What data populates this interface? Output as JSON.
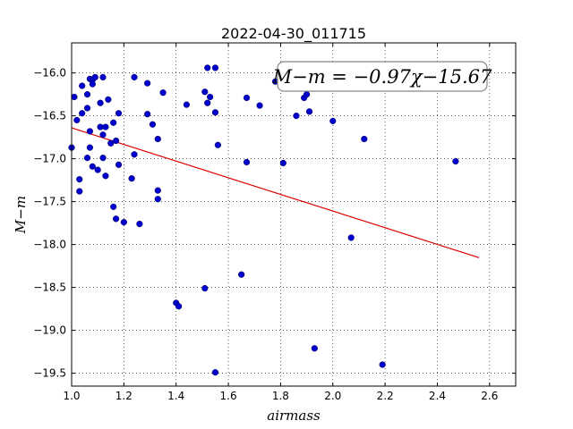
{
  "chart_data": {
    "type": "scatter",
    "title": "2022-04-30_011715",
    "xlabel": "airmass",
    "ylabel": "M−m",
    "xlim": [
      1.0,
      2.7
    ],
    "ylim": [
      -19.65,
      -15.65
    ],
    "xticks": [
      1.0,
      1.2,
      1.4,
      1.6,
      1.8,
      2.0,
      2.2,
      2.4,
      2.6
    ],
    "xtick_labels": [
      "1.0",
      "1.2",
      "1.4",
      "1.6",
      "1.8",
      "2.0",
      "2.2",
      "2.4",
      "2.6"
    ],
    "yticks": [
      -16.0,
      -16.5,
      -17.0,
      -17.5,
      -18.0,
      -18.5,
      -19.0,
      -19.5
    ],
    "ytick_labels": [
      "−16.0",
      "−16.5",
      "−17.0",
      "−17.5",
      "−18.0",
      "−18.5",
      "−19.0",
      "−19.5"
    ],
    "grid": true,
    "annotation": "M−m = −0.97χ−15.67",
    "points_color": "#0000cc",
    "fit_color": "#dd0000",
    "fit": {
      "slope": -0.97,
      "intercept": -15.67,
      "x_range": [
        1.0,
        2.56
      ]
    },
    "points": [
      [
        1.0,
        -16.87
      ],
      [
        1.01,
        -16.28
      ],
      [
        1.02,
        -16.55
      ],
      [
        1.03,
        -17.24
      ],
      [
        1.03,
        -17.38
      ],
      [
        1.04,
        -16.15
      ],
      [
        1.04,
        -16.47
      ],
      [
        1.06,
        -16.25
      ],
      [
        1.06,
        -16.41
      ],
      [
        1.06,
        -16.99
      ],
      [
        1.07,
        -16.07
      ],
      [
        1.07,
        -16.68
      ],
      [
        1.07,
        -16.87
      ],
      [
        1.08,
        -16.08
      ],
      [
        1.08,
        -16.13
      ],
      [
        1.08,
        -17.09
      ],
      [
        1.09,
        -16.05
      ],
      [
        1.1,
        -17.13
      ],
      [
        1.11,
        -16.35
      ],
      [
        1.11,
        -16.63
      ],
      [
        1.12,
        -16.05
      ],
      [
        1.12,
        -16.72
      ],
      [
        1.12,
        -16.99
      ],
      [
        1.13,
        -16.63
      ],
      [
        1.13,
        -17.2
      ],
      [
        1.14,
        -16.31
      ],
      [
        1.15,
        -16.82
      ],
      [
        1.16,
        -16.58
      ],
      [
        1.16,
        -17.56
      ],
      [
        1.17,
        -16.79
      ],
      [
        1.17,
        -17.7
      ],
      [
        1.18,
        -16.47
      ],
      [
        1.18,
        -17.07
      ],
      [
        1.2,
        -17.74
      ],
      [
        1.23,
        -17.23
      ],
      [
        1.24,
        -16.95
      ],
      [
        1.24,
        -16.05
      ],
      [
        1.26,
        -17.76
      ],
      [
        1.29,
        -16.12
      ],
      [
        1.29,
        -16.48
      ],
      [
        1.31,
        -16.6
      ],
      [
        1.33,
        -16.77
      ],
      [
        1.33,
        -17.37
      ],
      [
        1.33,
        -17.47
      ],
      [
        1.35,
        -16.23
      ],
      [
        1.4,
        -18.68
      ],
      [
        1.41,
        -18.72
      ],
      [
        1.44,
        -16.37
      ],
      [
        1.51,
        -18.51
      ],
      [
        1.51,
        -16.22
      ],
      [
        1.52,
        -15.94
      ],
      [
        1.52,
        -16.35
      ],
      [
        1.53,
        -16.28
      ],
      [
        1.55,
        -16.46
      ],
      [
        1.55,
        -15.94
      ],
      [
        1.55,
        -19.49
      ],
      [
        1.56,
        -16.84
      ],
      [
        1.65,
        -18.35
      ],
      [
        1.67,
        -17.04
      ],
      [
        1.67,
        -16.29
      ],
      [
        1.72,
        -16.38
      ],
      [
        1.78,
        -16.1
      ],
      [
        1.81,
        -17.05
      ],
      [
        1.86,
        -16.5
      ],
      [
        1.89,
        -16.29
      ],
      [
        1.9,
        -16.25
      ],
      [
        1.91,
        -16.45
      ],
      [
        1.93,
        -19.21
      ],
      [
        2.0,
        -16.56
      ],
      [
        2.07,
        -17.92
      ],
      [
        2.12,
        -16.77
      ],
      [
        2.19,
        -19.4
      ],
      [
        2.47,
        -17.03
      ]
    ]
  }
}
